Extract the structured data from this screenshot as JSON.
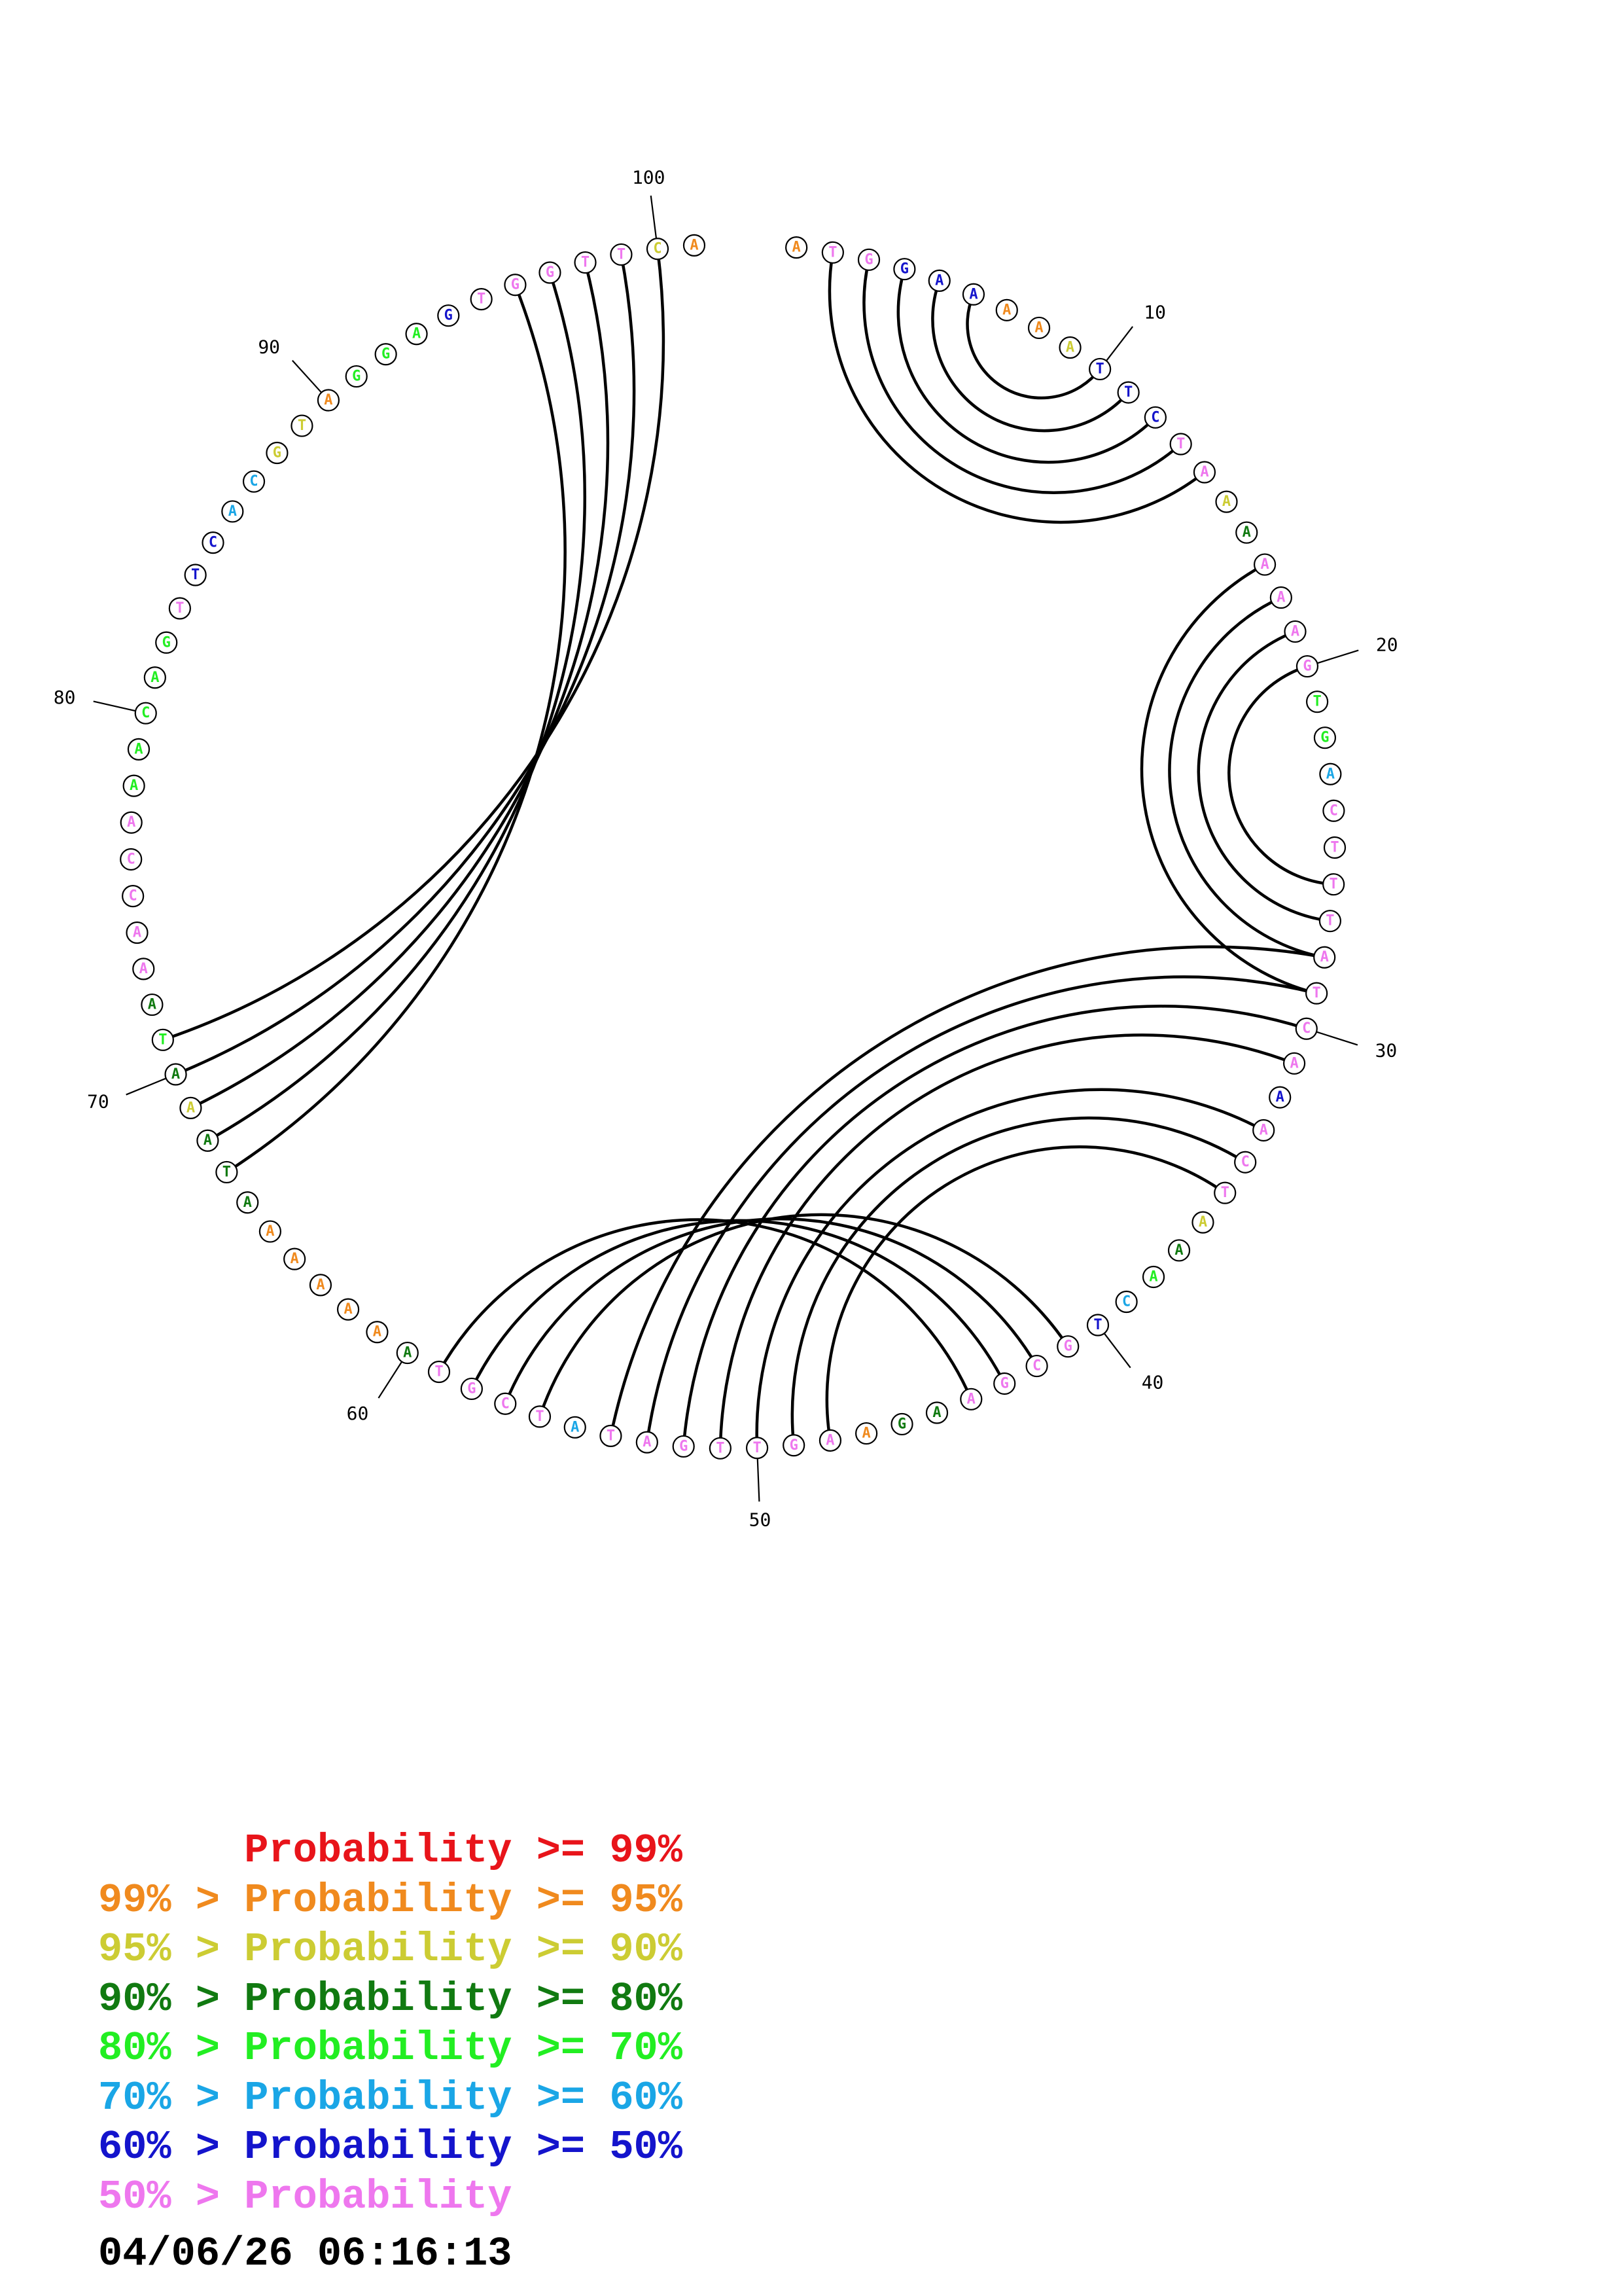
{
  "colors": {
    "p99": "#e8141a",
    "p95": "#f08a1e",
    "p90": "#cccc33",
    "p80": "#117a11",
    "p70": "#22ee22",
    "p60": "#1aa6e6",
    "p50": "#1414cc",
    "plow": "#ee77ee"
  },
  "sequence": [
    {
      "n": "A",
      "p": "p95"
    },
    {
      "n": "T",
      "p": "plow"
    },
    {
      "n": "G",
      "p": "plow"
    },
    {
      "n": "G",
      "p": "p50"
    },
    {
      "n": "A",
      "p": "p50"
    },
    {
      "n": "A",
      "p": "p50"
    },
    {
      "n": "A",
      "p": "p95"
    },
    {
      "n": "A",
      "p": "p95"
    },
    {
      "n": "A",
      "p": "p90"
    },
    {
      "n": "T",
      "p": "p50"
    },
    {
      "n": "T",
      "p": "p50"
    },
    {
      "n": "C",
      "p": "p50"
    },
    {
      "n": "T",
      "p": "plow"
    },
    {
      "n": "A",
      "p": "plow"
    },
    {
      "n": "A",
      "p": "p90"
    },
    {
      "n": "A",
      "p": "p80"
    },
    {
      "n": "A",
      "p": "plow"
    },
    {
      "n": "A",
      "p": "plow"
    },
    {
      "n": "A",
      "p": "plow"
    },
    {
      "n": "G",
      "p": "plow"
    },
    {
      "n": "T",
      "p": "p70"
    },
    {
      "n": "G",
      "p": "p70"
    },
    {
      "n": "A",
      "p": "p60"
    },
    {
      "n": "C",
      "p": "plow"
    },
    {
      "n": "T",
      "p": "plow"
    },
    {
      "n": "T",
      "p": "plow"
    },
    {
      "n": "T",
      "p": "plow"
    },
    {
      "n": "A",
      "p": "plow"
    },
    {
      "n": "T",
      "p": "plow"
    },
    {
      "n": "C",
      "p": "plow"
    },
    {
      "n": "A",
      "p": "plow"
    },
    {
      "n": "A",
      "p": "p50"
    },
    {
      "n": "A",
      "p": "plow"
    },
    {
      "n": "C",
      "p": "plow"
    },
    {
      "n": "T",
      "p": "plow"
    },
    {
      "n": "A",
      "p": "p90"
    },
    {
      "n": "A",
      "p": "p80"
    },
    {
      "n": "A",
      "p": "p70"
    },
    {
      "n": "C",
      "p": "p60"
    },
    {
      "n": "T",
      "p": "p50"
    },
    {
      "n": "G",
      "p": "plow"
    },
    {
      "n": "C",
      "p": "plow"
    },
    {
      "n": "G",
      "p": "plow"
    },
    {
      "n": "A",
      "p": "plow"
    },
    {
      "n": "A",
      "p": "p80"
    },
    {
      "n": "G",
      "p": "p80"
    },
    {
      "n": "A",
      "p": "p95"
    },
    {
      "n": "A",
      "p": "plow"
    },
    {
      "n": "G",
      "p": "plow"
    },
    {
      "n": "T",
      "p": "plow"
    },
    {
      "n": "T",
      "p": "plow"
    },
    {
      "n": "G",
      "p": "plow"
    },
    {
      "n": "A",
      "p": "plow"
    },
    {
      "n": "T",
      "p": "plow"
    },
    {
      "n": "A",
      "p": "p60"
    },
    {
      "n": "T",
      "p": "plow"
    },
    {
      "n": "C",
      "p": "plow"
    },
    {
      "n": "G",
      "p": "plow"
    },
    {
      "n": "T",
      "p": "plow"
    },
    {
      "n": "A",
      "p": "p80"
    },
    {
      "n": "A",
      "p": "p95"
    },
    {
      "n": "A",
      "p": "p95"
    },
    {
      "n": "A",
      "p": "p95"
    },
    {
      "n": "A",
      "p": "p95"
    },
    {
      "n": "A",
      "p": "p95"
    },
    {
      "n": "A",
      "p": "p80"
    },
    {
      "n": "T",
      "p": "p80"
    },
    {
      "n": "A",
      "p": "p80"
    },
    {
      "n": "A",
      "p": "p90"
    },
    {
      "n": "A",
      "p": "p80"
    },
    {
      "n": "T",
      "p": "p70"
    },
    {
      "n": "A",
      "p": "p80"
    },
    {
      "n": "A",
      "p": "plow"
    },
    {
      "n": "A",
      "p": "plow"
    },
    {
      "n": "C",
      "p": "plow"
    },
    {
      "n": "C",
      "p": "plow"
    },
    {
      "n": "A",
      "p": "plow"
    },
    {
      "n": "A",
      "p": "p70"
    },
    {
      "n": "A",
      "p": "p70"
    },
    {
      "n": "C",
      "p": "p70"
    },
    {
      "n": "A",
      "p": "p70"
    },
    {
      "n": "G",
      "p": "p70"
    },
    {
      "n": "T",
      "p": "plow"
    },
    {
      "n": "T",
      "p": "p50"
    },
    {
      "n": "C",
      "p": "p50"
    },
    {
      "n": "A",
      "p": "p60"
    },
    {
      "n": "C",
      "p": "p60"
    },
    {
      "n": "G",
      "p": "p90"
    },
    {
      "n": "T",
      "p": "p90"
    },
    {
      "n": "A",
      "p": "p95"
    },
    {
      "n": "G",
      "p": "p70"
    },
    {
      "n": "G",
      "p": "p70"
    },
    {
      "n": "A",
      "p": "p70"
    },
    {
      "n": "G",
      "p": "p50"
    },
    {
      "n": "T",
      "p": "plow"
    },
    {
      "n": "G",
      "p": "plow"
    },
    {
      "n": "G",
      "p": "plow"
    },
    {
      "n": "T",
      "p": "plow"
    },
    {
      "n": "T",
      "p": "plow"
    },
    {
      "n": "C",
      "p": "p90"
    },
    {
      "n": "A",
      "p": "p95"
    }
  ],
  "pairs": [
    [
      2,
      14
    ],
    [
      3,
      13
    ],
    [
      4,
      12
    ],
    [
      5,
      11
    ],
    [
      6,
      10
    ],
    [
      17,
      29
    ],
    [
      18,
      28
    ],
    [
      19,
      27
    ],
    [
      20,
      26
    ],
    [
      28,
      54
    ],
    [
      29,
      53
    ],
    [
      30,
      52
    ],
    [
      31,
      51
    ],
    [
      33,
      50
    ],
    [
      34,
      49
    ],
    [
      35,
      48
    ],
    [
      41,
      56
    ],
    [
      42,
      57
    ],
    [
      43,
      58
    ],
    [
      44,
      59
    ],
    [
      67,
      96
    ],
    [
      68,
      97
    ],
    [
      69,
      98
    ],
    [
      70,
      99
    ],
    [
      71,
      100
    ]
  ],
  "ticks": [
    {
      "pos": 10,
      "label": "10"
    },
    {
      "pos": 20,
      "label": "20"
    },
    {
      "pos": 30,
      "label": "30"
    },
    {
      "pos": 40,
      "label": "40"
    },
    {
      "pos": 50,
      "label": "50"
    },
    {
      "pos": 60,
      "label": "60"
    },
    {
      "pos": 70,
      "label": "70"
    },
    {
      "pos": 80,
      "label": "80"
    },
    {
      "pos": 90,
      "label": "90"
    },
    {
      "pos": 100,
      "label": "100"
    }
  ],
  "legend": [
    {
      "prefix": "",
      "text": "Probability >= 99%",
      "color": "p99"
    },
    {
      "prefix": "99% > ",
      "text": "Probability >= 95%",
      "color": "p95"
    },
    {
      "prefix": "95% > ",
      "text": "Probability >= 90%",
      "color": "p90"
    },
    {
      "prefix": "90% > ",
      "text": "Probability >= 80%",
      "color": "p80"
    },
    {
      "prefix": "80% > ",
      "text": "Probability >= 70%",
      "color": "p70"
    },
    {
      "prefix": "70% > ",
      "text": "Probability >= 60%",
      "color": "p60"
    },
    {
      "prefix": "60% > ",
      "text": "Probability >= 50%",
      "color": "p50"
    },
    {
      "prefix": "50% > ",
      "text": "Probability",
      "color": "plow"
    }
  ],
  "timestamp": "04/06/26 06:16:13"
}
